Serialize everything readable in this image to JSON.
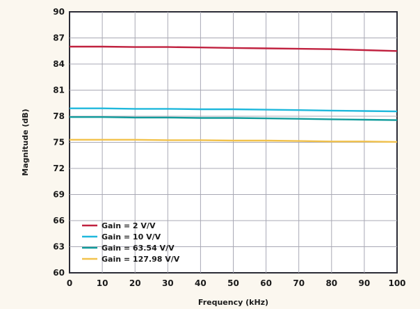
{
  "chart_data": {
    "type": "line",
    "title": "",
    "xlabel": "Frequency (kHz)",
    "ylabel": "Magnitude (dB)",
    "xlim": [
      0,
      100
    ],
    "ylim": [
      60,
      90
    ],
    "x_ticks": [
      0,
      10,
      20,
      30,
      40,
      50,
      60,
      70,
      80,
      90,
      100
    ],
    "y_ticks": [
      60,
      63,
      66,
      69,
      72,
      75,
      78,
      81,
      84,
      87,
      90
    ],
    "grid": true,
    "legend_position": "bottom-left",
    "x": [
      0,
      10,
      20,
      30,
      40,
      50,
      60,
      70,
      80,
      90,
      100
    ],
    "series": [
      {
        "name": "Gain = 2 V/V",
        "color": "#c0213f",
        "values": [
          86.0,
          86.0,
          85.95,
          85.95,
          85.9,
          85.85,
          85.8,
          85.75,
          85.7,
          85.6,
          85.5
        ]
      },
      {
        "name": "Gain = 10 V/V",
        "color": "#1fb8dc",
        "values": [
          78.9,
          78.9,
          78.85,
          78.85,
          78.8,
          78.8,
          78.75,
          78.7,
          78.65,
          78.6,
          78.55
        ]
      },
      {
        "name": "Gain = 63.54 V/V",
        "color": "#119c9c",
        "values": [
          77.9,
          77.9,
          77.85,
          77.85,
          77.8,
          77.8,
          77.75,
          77.7,
          77.65,
          77.6,
          77.55
        ]
      },
      {
        "name": "Gain = 127.98 V/V",
        "color": "#f2c24b",
        "values": [
          75.3,
          75.3,
          75.3,
          75.25,
          75.25,
          75.2,
          75.2,
          75.15,
          75.1,
          75.1,
          75.05
        ]
      }
    ]
  }
}
